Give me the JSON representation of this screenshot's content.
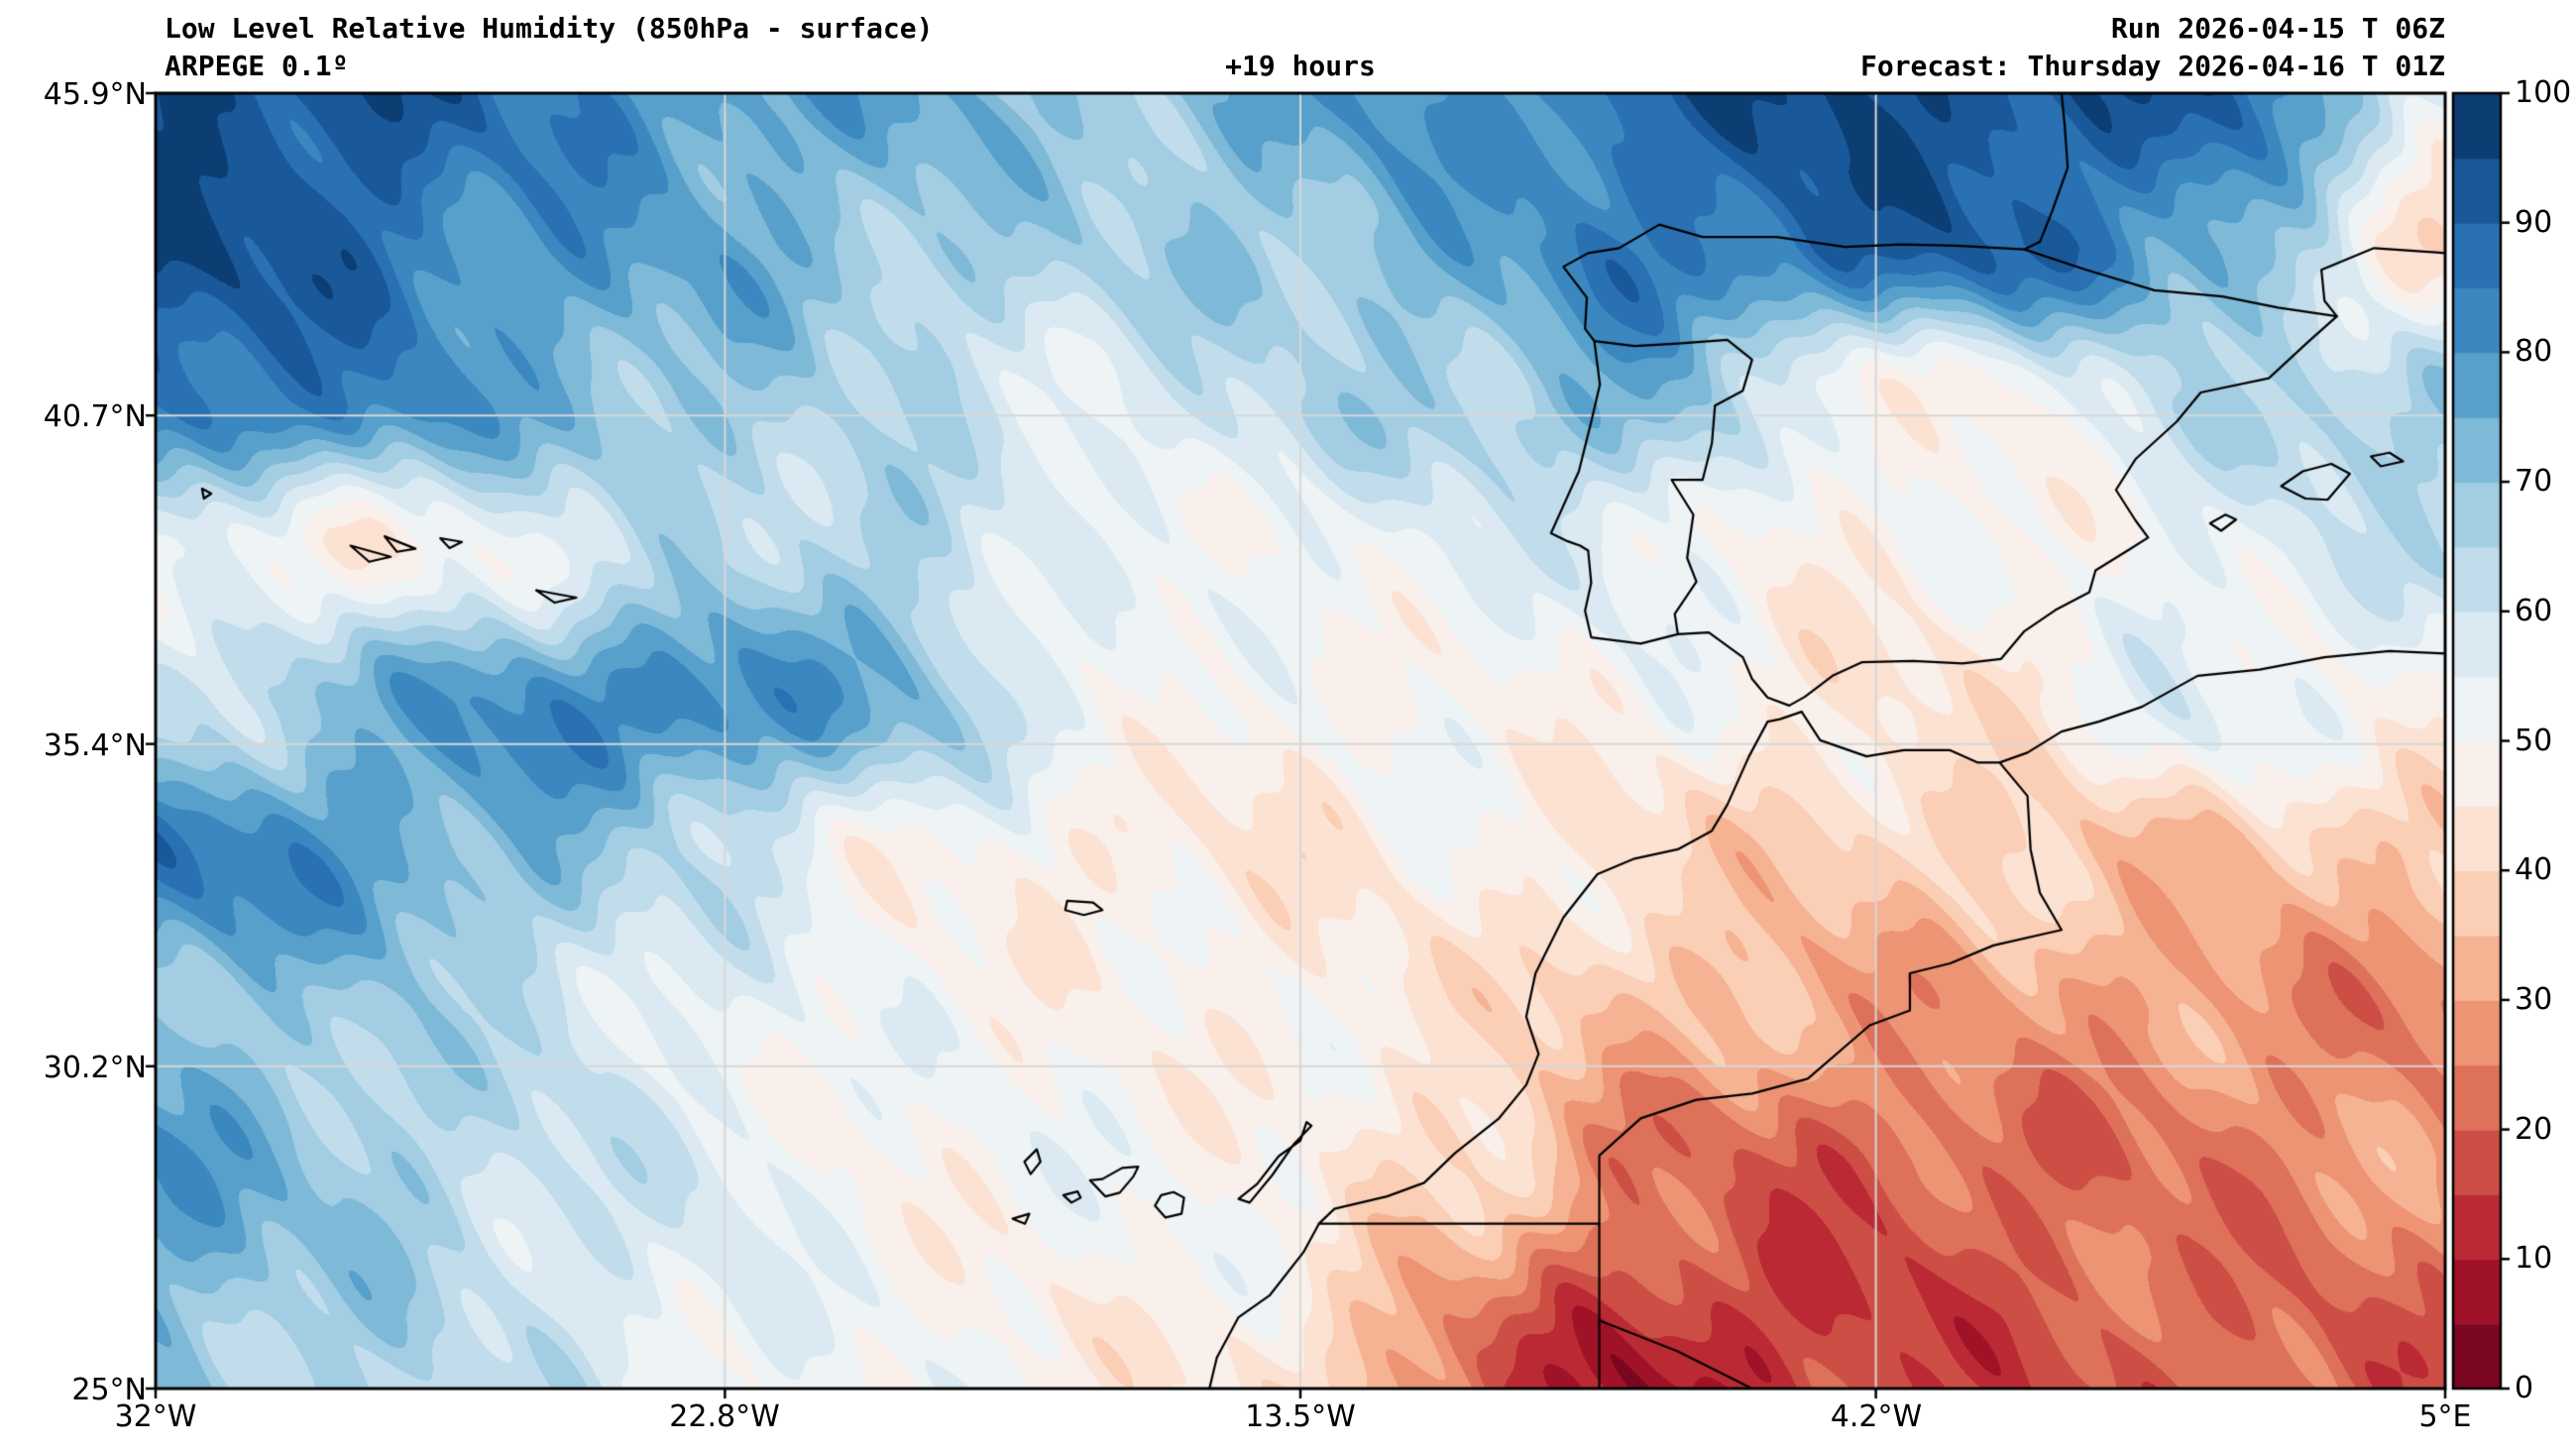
{
  "header": {
    "title": "Low Level Relative Humidity (850hPa - surface)",
    "model": "ARPEGE 0.1º",
    "lead_time": "+19 hours",
    "run_label": "Run 2026-04-15 T 06Z",
    "forecast_label": "Forecast: Thursday 2026-04-16 T 01Z"
  },
  "axes": {
    "x_ticks": [
      {
        "label": "32°W",
        "lon": -32
      },
      {
        "label": "22.8°W",
        "lon": -22.8
      },
      {
        "label": "13.5°W",
        "lon": -13.5
      },
      {
        "label": "4.2°W",
        "lon": -4.2
      },
      {
        "label": "5°E",
        "lon": 5
      }
    ],
    "y_ticks": [
      {
        "label": "45.9°N",
        "lat": 45.9
      },
      {
        "label": "40.7°N",
        "lat": 40.7
      },
      {
        "label": "35.4°N",
        "lat": 35.4
      },
      {
        "label": "30.2°N",
        "lat": 30.2
      },
      {
        "label": "25°N",
        "lat": 25
      }
    ],
    "grid_color": "#d7d7d7"
  },
  "colorbar": {
    "tick_values": [
      0,
      10,
      20,
      30,
      40,
      50,
      60,
      70,
      80,
      90,
      100
    ],
    "tick_labels": [
      "100",
      "90",
      "80",
      "70",
      "60",
      "50",
      "40",
      "30",
      "20",
      "10",
      "0"
    ]
  },
  "chart_data": {
    "type": "heatmap",
    "variable": "relative_humidity_percent",
    "level": "850hPa - surface",
    "model": "ARPEGE 0.1º",
    "run": "2026-04-15 T 06Z",
    "valid": "Thursday 2026-04-16 T 01Z",
    "lead_hours": 19,
    "lon_range": [
      -32,
      5
    ],
    "lat_range": [
      25,
      45.9
    ],
    "value_range": [
      0,
      100
    ],
    "level_step": 5,
    "grid_lons": [
      -32,
      -29,
      -26,
      -23,
      -20,
      -17,
      -14,
      -11,
      -8,
      -5,
      -2,
      1,
      5
    ],
    "grid_lats": [
      46,
      43.5,
      41,
      38.5,
      36,
      33.5,
      31,
      28.5,
      25
    ],
    "values": [
      [
        95,
        95,
        85,
        80,
        75,
        70,
        75,
        80,
        90,
        95,
        95,
        90,
        60
      ],
      [
        95,
        90,
        80,
        75,
        70,
        65,
        70,
        75,
        85,
        90,
        90,
        80,
        38
      ],
      [
        90,
        85,
        75,
        70,
        62,
        57,
        62,
        68,
        75,
        50,
        50,
        62,
        70
      ],
      [
        52,
        47,
        55,
        63,
        68,
        50,
        53,
        55,
        55,
        48,
        48,
        55,
        60
      ],
      [
        60,
        72,
        82,
        85,
        72,
        55,
        47,
        50,
        50,
        45,
        45,
        55,
        50
      ],
      [
        85,
        80,
        72,
        60,
        50,
        45,
        45,
        48,
        42,
        37,
        38,
        35,
        35
      ],
      [
        72,
        68,
        62,
        55,
        50,
        50,
        47,
        44,
        34,
        30,
        29,
        28,
        25
      ],
      [
        78,
        70,
        62,
        56,
        50,
        50,
        50,
        40,
        24,
        19,
        20,
        24,
        28
      ],
      [
        70,
        66,
        60,
        55,
        50,
        48,
        44,
        22,
        8,
        14,
        18,
        20,
        20
      ]
    ],
    "colormap_anchors": [
      {
        "value": 0,
        "color": "#67001f"
      },
      {
        "value": 10,
        "color": "#b2182b"
      },
      {
        "value": 20,
        "color": "#d6604d"
      },
      {
        "value": 30,
        "color": "#f4a582"
      },
      {
        "value": 40,
        "color": "#fddbc7"
      },
      {
        "value": 50,
        "color": "#f7f7f7"
      },
      {
        "value": 60,
        "color": "#d1e5f0"
      },
      {
        "value": 70,
        "color": "#92c5de"
      },
      {
        "value": 80,
        "color": "#4393c6"
      },
      {
        "value": 90,
        "color": "#2166ac"
      },
      {
        "value": 100,
        "color": "#053061"
      }
    ]
  },
  "geo": {
    "coastlines": [
      {
        "name": "iberia-france-coast",
        "closed": false,
        "pts": [
          [
            -1.2,
            45.9
          ],
          [
            -1.15,
            45.4
          ],
          [
            -1.1,
            44.7
          ],
          [
            -1.35,
            44.0
          ],
          [
            -1.55,
            43.5
          ],
          [
            -1.8,
            43.38
          ],
          [
            -2.9,
            43.44
          ],
          [
            -3.8,
            43.46
          ],
          [
            -4.7,
            43.42
          ],
          [
            -5.8,
            43.58
          ],
          [
            -7.0,
            43.58
          ],
          [
            -7.7,
            43.78
          ],
          [
            -8.35,
            43.4
          ],
          [
            -8.85,
            43.32
          ],
          [
            -9.25,
            43.1
          ],
          [
            -8.87,
            42.6
          ],
          [
            -8.9,
            42.1
          ],
          [
            -8.75,
            41.9
          ],
          [
            -8.66,
            41.2
          ],
          [
            -8.8,
            40.6
          ],
          [
            -9.0,
            39.8
          ],
          [
            -9.45,
            38.8
          ],
          [
            -9.18,
            38.67
          ],
          [
            -8.98,
            38.6
          ],
          [
            -8.85,
            38.52
          ],
          [
            -8.8,
            38.0
          ],
          [
            -8.9,
            37.55
          ],
          [
            -8.8,
            37.12
          ],
          [
            -8.0,
            37.02
          ],
          [
            -7.4,
            37.17
          ],
          [
            -6.9,
            37.2
          ],
          [
            -6.35,
            36.8
          ],
          [
            -6.2,
            36.45
          ],
          [
            -5.95,
            36.15
          ],
          [
            -5.6,
            36.02
          ],
          [
            -5.35,
            36.16
          ],
          [
            -4.9,
            36.5
          ],
          [
            -4.42,
            36.72
          ],
          [
            -3.6,
            36.74
          ],
          [
            -2.8,
            36.7
          ],
          [
            -2.18,
            36.77
          ],
          [
            -1.8,
            37.22
          ],
          [
            -1.3,
            37.56
          ],
          [
            -0.75,
            37.85
          ],
          [
            -0.65,
            38.2
          ],
          [
            -0.1,
            38.54
          ],
          [
            0.2,
            38.73
          ],
          [
            0.0,
            39.0
          ],
          [
            -0.32,
            39.5
          ],
          [
            0.0,
            40.0
          ],
          [
            0.66,
            40.6
          ],
          [
            1.05,
            41.07
          ],
          [
            2.15,
            41.3
          ],
          [
            2.8,
            41.9
          ],
          [
            3.25,
            42.3
          ],
          [
            3.05,
            42.55
          ],
          [
            3.0,
            43.05
          ],
          [
            3.85,
            43.4
          ],
          [
            4.85,
            43.33
          ],
          [
            5.0,
            43.32
          ]
        ]
      },
      {
        "name": "pyrenees-border",
        "closed": false,
        "pts": [
          [
            -1.8,
            43.38
          ],
          [
            -0.8,
            43.05
          ],
          [
            0.3,
            42.72
          ],
          [
            1.4,
            42.62
          ],
          [
            2.3,
            42.44
          ],
          [
            3.25,
            42.3
          ]
        ]
      },
      {
        "name": "portugal-spain-border",
        "closed": false,
        "pts": [
          [
            -8.75,
            41.9
          ],
          [
            -8.1,
            41.82
          ],
          [
            -7.4,
            41.86
          ],
          [
            -6.6,
            41.92
          ],
          [
            -6.2,
            41.6
          ],
          [
            -6.35,
            41.1
          ],
          [
            -6.8,
            40.86
          ],
          [
            -6.85,
            40.25
          ],
          [
            -7.0,
            39.66
          ],
          [
            -7.5,
            39.66
          ],
          [
            -7.15,
            39.1
          ],
          [
            -7.25,
            38.4
          ],
          [
            -7.1,
            38.02
          ],
          [
            -7.45,
            37.5
          ],
          [
            -7.4,
            37.17
          ]
        ]
      },
      {
        "name": "africa-atlantic-coast",
        "closed": false,
        "pts": [
          [
            -5.4,
            35.92
          ],
          [
            -5.75,
            35.8
          ],
          [
            -5.95,
            35.76
          ],
          [
            -6.25,
            35.2
          ],
          [
            -6.6,
            34.42
          ],
          [
            -6.85,
            34.0
          ],
          [
            -7.4,
            33.7
          ],
          [
            -8.1,
            33.55
          ],
          [
            -8.7,
            33.3
          ],
          [
            -9.25,
            32.6
          ],
          [
            -9.7,
            31.7
          ],
          [
            -9.85,
            31.0
          ],
          [
            -9.65,
            30.4
          ],
          [
            -9.85,
            29.9
          ],
          [
            -10.3,
            29.35
          ],
          [
            -11.0,
            28.8
          ],
          [
            -11.5,
            28.32
          ],
          [
            -12.1,
            28.1
          ],
          [
            -12.95,
            27.9
          ],
          [
            -13.2,
            27.66
          ],
          [
            -13.45,
            27.2
          ],
          [
            -14.0,
            26.5
          ],
          [
            -14.5,
            26.15
          ],
          [
            -14.85,
            25.5
          ],
          [
            -14.97,
            25.0
          ]
        ]
      },
      {
        "name": "africa-mediterranean-coast",
        "closed": false,
        "pts": [
          [
            -5.4,
            35.92
          ],
          [
            -5.1,
            35.46
          ],
          [
            -4.35,
            35.2
          ],
          [
            -3.75,
            35.3
          ],
          [
            -3.0,
            35.3
          ],
          [
            -2.55,
            35.1
          ],
          [
            -2.2,
            35.1
          ],
          [
            -1.75,
            35.26
          ],
          [
            -1.2,
            35.6
          ],
          [
            -0.6,
            35.76
          ],
          [
            0.1,
            36.0
          ],
          [
            1.0,
            36.5
          ],
          [
            2.0,
            36.6
          ],
          [
            3.05,
            36.8
          ],
          [
            4.1,
            36.9
          ],
          [
            5.0,
            36.86
          ]
        ]
      },
      {
        "name": "morocco-algeria-border",
        "closed": false,
        "pts": [
          [
            -2.2,
            35.1
          ],
          [
            -1.75,
            34.56
          ],
          [
            -1.7,
            33.7
          ],
          [
            -1.55,
            33.0
          ],
          [
            -1.2,
            32.4
          ],
          [
            -2.3,
            32.15
          ],
          [
            -3.0,
            31.86
          ],
          [
            -3.65,
            31.7
          ],
          [
            -3.65,
            31.1
          ],
          [
            -4.3,
            30.86
          ],
          [
            -5.3,
            30.0
          ],
          [
            -6.2,
            29.76
          ],
          [
            -7.1,
            29.66
          ],
          [
            -8.0,
            29.36
          ],
          [
            -8.67,
            28.76
          ],
          [
            -8.67,
            27.66
          ]
        ]
      },
      {
        "name": "wsahara-morocco-border",
        "closed": false,
        "pts": [
          [
            -13.2,
            27.66
          ],
          [
            -8.67,
            27.66
          ]
        ]
      },
      {
        "name": "wsahara-east-meridian-border",
        "closed": false,
        "pts": [
          [
            -8.67,
            27.66
          ],
          [
            -8.67,
            25.0
          ]
        ]
      },
      {
        "name": "algeria-mauritania-border",
        "closed": false,
        "pts": [
          [
            -8.67,
            26.1
          ],
          [
            -7.4,
            25.6
          ],
          [
            -6.2,
            25.0
          ]
        ]
      },
      {
        "name": "madeira",
        "closed": true,
        "pts": [
          [
            -17.27,
            32.87
          ],
          [
            -16.85,
            32.84
          ],
          [
            -16.7,
            32.72
          ],
          [
            -17.0,
            32.64
          ],
          [
            -17.3,
            32.72
          ]
        ]
      },
      {
        "name": "lanzarote-fuerteventura",
        "closed": true,
        "pts": [
          [
            -13.4,
            29.3
          ],
          [
            -13.5,
            29.0
          ],
          [
            -13.85,
            28.75
          ],
          [
            -14.2,
            28.3
          ],
          [
            -14.5,
            28.06
          ],
          [
            -14.32,
            28.0
          ],
          [
            -13.95,
            28.45
          ],
          [
            -13.6,
            28.95
          ],
          [
            -13.32,
            29.24
          ]
        ]
      },
      {
        "name": "gran-canaria",
        "closed": true,
        "pts": [
          [
            -15.38,
            28.08
          ],
          [
            -15.55,
            28.17
          ],
          [
            -15.75,
            28.12
          ],
          [
            -15.85,
            27.95
          ],
          [
            -15.68,
            27.76
          ],
          [
            -15.42,
            27.82
          ]
        ]
      },
      {
        "name": "tenerife",
        "closed": true,
        "pts": [
          [
            -16.12,
            28.58
          ],
          [
            -16.38,
            28.56
          ],
          [
            -16.7,
            28.38
          ],
          [
            -16.9,
            28.36
          ],
          [
            -16.65,
            28.1
          ],
          [
            -16.42,
            28.16
          ],
          [
            -16.2,
            28.42
          ]
        ]
      },
      {
        "name": "la-palma",
        "closed": true,
        "pts": [
          [
            -17.76,
            28.86
          ],
          [
            -17.96,
            28.66
          ],
          [
            -17.86,
            28.46
          ],
          [
            -17.7,
            28.66
          ]
        ]
      },
      {
        "name": "la-gomera",
        "closed": true,
        "pts": [
          [
            -17.1,
            28.18
          ],
          [
            -17.33,
            28.12
          ],
          [
            -17.2,
            28.0
          ],
          [
            -17.05,
            28.08
          ]
        ]
      },
      {
        "name": "el-hierro",
        "closed": true,
        "pts": [
          [
            -17.88,
            27.82
          ],
          [
            -18.15,
            27.74
          ],
          [
            -17.95,
            27.66
          ]
        ]
      },
      {
        "name": "ibiza",
        "closed": true,
        "pts": [
          [
            1.2,
            38.96
          ],
          [
            1.45,
            39.1
          ],
          [
            1.62,
            39.02
          ],
          [
            1.38,
            38.84
          ]
        ]
      },
      {
        "name": "mallorca",
        "closed": true,
        "pts": [
          [
            2.35,
            39.56
          ],
          [
            2.7,
            39.8
          ],
          [
            3.16,
            39.92
          ],
          [
            3.46,
            39.76
          ],
          [
            3.1,
            39.34
          ],
          [
            2.74,
            39.36
          ]
        ]
      },
      {
        "name": "menorca",
        "closed": true,
        "pts": [
          [
            3.8,
            40.04
          ],
          [
            4.1,
            40.1
          ],
          [
            4.32,
            39.96
          ],
          [
            3.96,
            39.88
          ]
        ]
      },
      {
        "name": "azores-sao-miguel",
        "closed": true,
        "pts": [
          [
            -25.85,
            37.88
          ],
          [
            -25.2,
            37.76
          ],
          [
            -25.55,
            37.68
          ]
        ]
      },
      {
        "name": "azores-terceira",
        "closed": true,
        "pts": [
          [
            -27.4,
            38.72
          ],
          [
            -27.05,
            38.66
          ],
          [
            -27.25,
            38.56
          ]
        ]
      },
      {
        "name": "azores-pico-faial",
        "closed": true,
        "pts": [
          [
            -28.85,
            38.6
          ],
          [
            -28.2,
            38.42
          ],
          [
            -28.55,
            38.34
          ]
        ]
      },
      {
        "name": "azores-sao-jorge",
        "closed": true,
        "pts": [
          [
            -28.3,
            38.75
          ],
          [
            -27.8,
            38.55
          ],
          [
            -28.1,
            38.5
          ]
        ]
      },
      {
        "name": "azores-flores",
        "closed": true,
        "pts": [
          [
            -31.25,
            39.52
          ],
          [
            -31.1,
            39.44
          ],
          [
            -31.22,
            39.36
          ]
        ]
      }
    ]
  }
}
